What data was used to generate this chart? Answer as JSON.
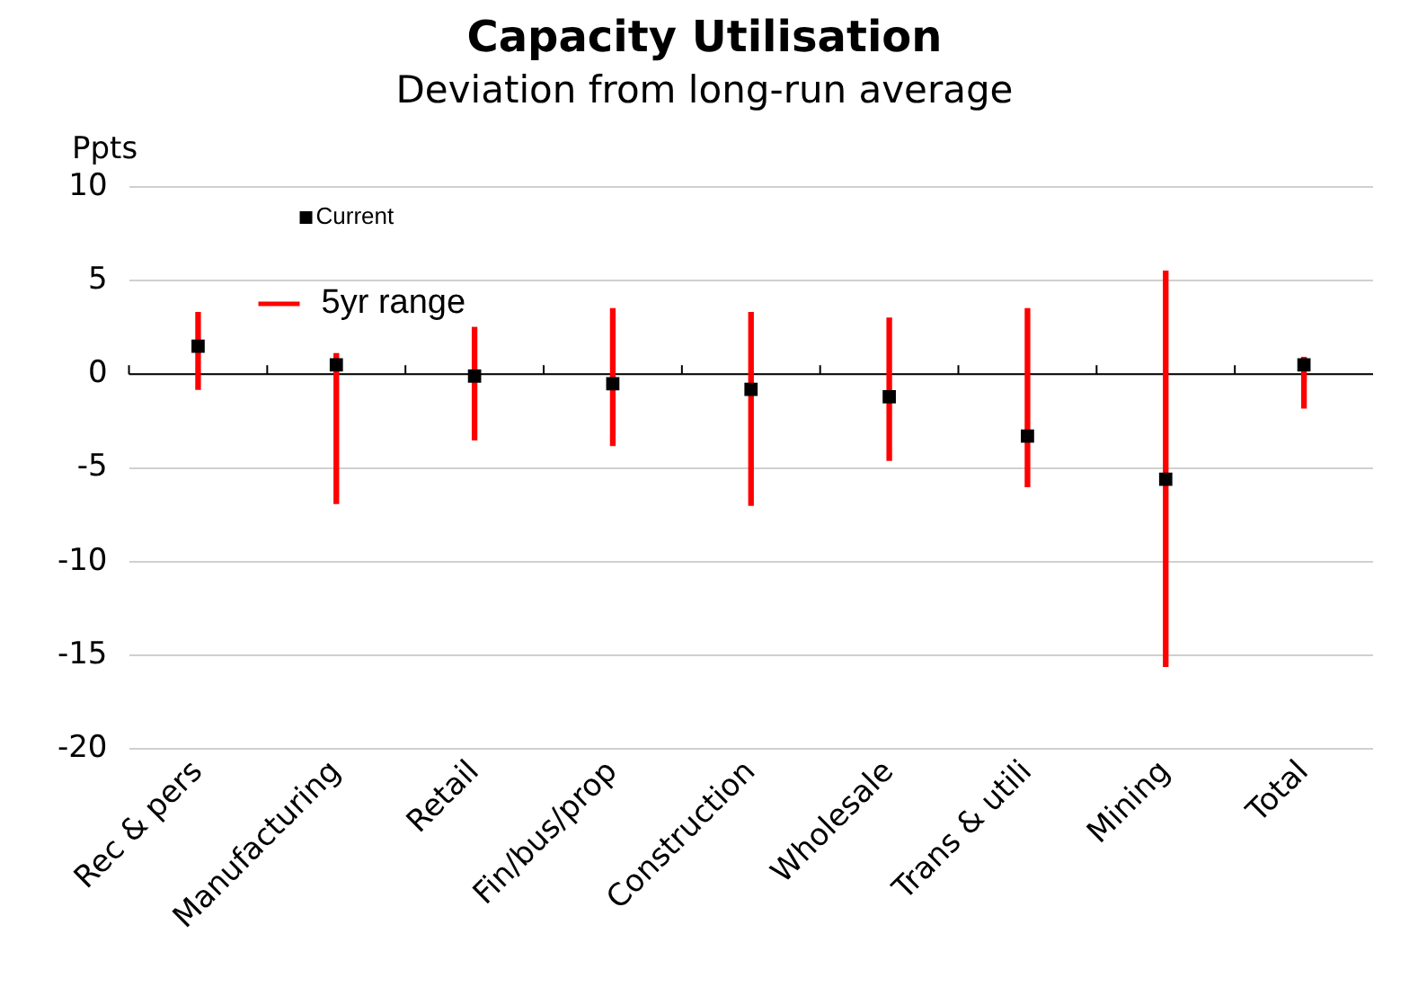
{
  "chart_data": {
    "type": "scatter",
    "title": "Capacity Utilisation",
    "subtitle": "Deviation from long-run average",
    "ylabel": "Ppts",
    "categories": [
      "Rec & pers",
      "Manufacturing",
      "Retail",
      "Fin/bus/prop",
      "Construction",
      "Wholesale",
      "Trans & utili",
      "Mining",
      "Total"
    ],
    "series": [
      {
        "name": "Current",
        "color": "#000000",
        "marker": "square",
        "values": [
          1.5,
          0.5,
          -0.1,
          -0.5,
          -0.8,
          -1.2,
          -3.3,
          -5.6,
          0.5
        ]
      },
      {
        "name": "5yr range",
        "type": "bar",
        "color": "#ff0000",
        "base": [
          -0.8,
          -6.9,
          -3.5,
          -3.8,
          -7.0,
          -4.6,
          -6.0,
          -15.6,
          -1.8
        ],
        "values": [
          4.1,
          8.0,
          6.0,
          7.3,
          10.3,
          7.6,
          9.5,
          21.1,
          2.7
        ]
      }
    ],
    "ylim": [
      -20,
      10
    ],
    "yticks": [
      -20,
      -15,
      -10,
      -5,
      0,
      5,
      10
    ],
    "grid": "y",
    "legend": "top left"
  }
}
